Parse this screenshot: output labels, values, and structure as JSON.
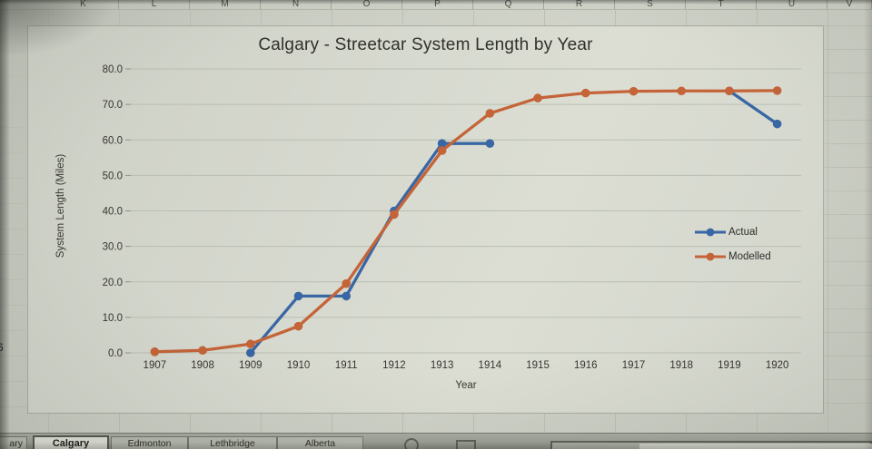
{
  "spreadsheet": {
    "column_headers": [
      "K",
      "L",
      "M",
      "N",
      "O",
      "P",
      "Q",
      "R",
      "S",
      "T",
      "U",
      "V"
    ],
    "row_fragment_text": "6",
    "tab_bar": {
      "partial_tab_label": "ary",
      "active_tab": "Calgary",
      "inactive_tabs": [
        "Edmonton",
        "Lethbridge",
        "Alberta"
      ],
      "add_sheet_icon": "circle-outline",
      "sheet_option_icon": "square-outline"
    }
  },
  "chart_data": {
    "type": "line",
    "title": "Calgary - Streetcar System Length by Year",
    "xlabel": "Year",
    "ylabel": "System Length (Miles)",
    "categories": [
      "1907",
      "1908",
      "1909",
      "1910",
      "1911",
      "1912",
      "1913",
      "1914",
      "1915",
      "1916",
      "1917",
      "1918",
      "1919",
      "1920"
    ],
    "series": [
      {
        "name": "Actual",
        "color": "#2d5d9e",
        "values": [
          null,
          null,
          0.0,
          16.0,
          16.0,
          40.0,
          59.0,
          59.0,
          null,
          null,
          null,
          null,
          73.8,
          64.5
        ]
      },
      {
        "name": "Modelled",
        "color": "#c05a2c",
        "values": [
          0.3,
          0.7,
          2.5,
          7.5,
          19.5,
          39.0,
          57.0,
          67.5,
          71.8,
          73.2,
          73.7,
          73.8,
          73.8,
          73.9
        ]
      }
    ],
    "ylim": [
      0,
      80
    ],
    "ytick_step": 10,
    "ytick_decimals": 1,
    "grid": "horizontal",
    "legend_position": "right-inside"
  },
  "colors": {
    "grid_line": "#b5baae",
    "tick": "#878c80",
    "axis_text": "#2b2b26"
  }
}
